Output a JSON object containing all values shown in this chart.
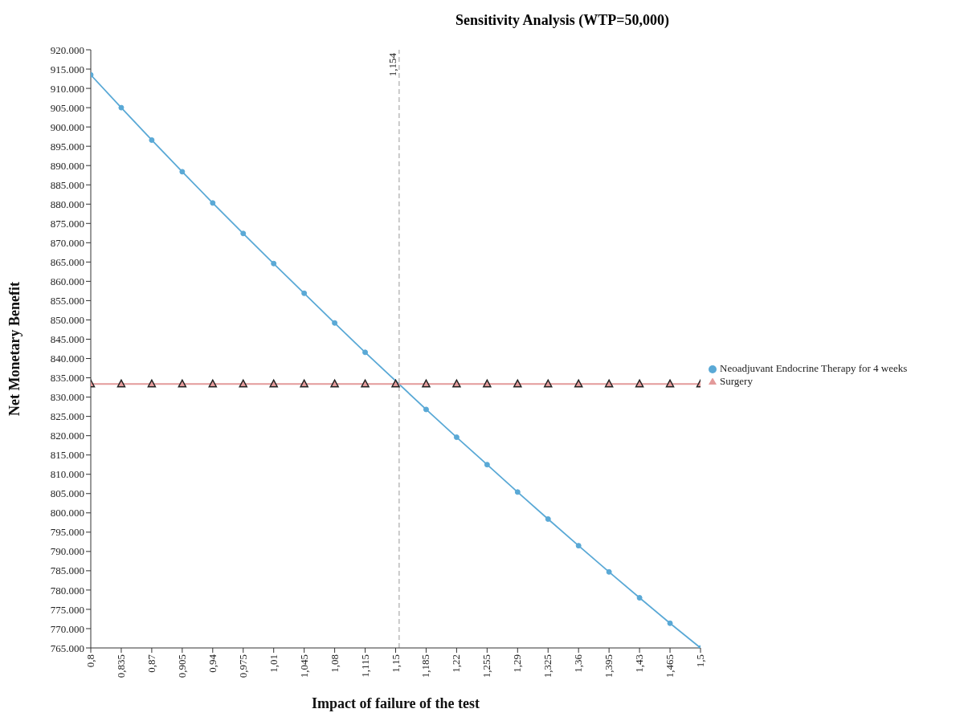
{
  "chart_data": {
    "type": "line",
    "title": "Sensitivity Analysis (WTP=50,000)",
    "xlabel": "Impact of failure of the test",
    "ylabel": "Net Monetary Benefit",
    "x": [
      0.8,
      0.835,
      0.87,
      0.905,
      0.94,
      0.975,
      1.01,
      1.045,
      1.08,
      1.115,
      1.15,
      1.185,
      1.22,
      1.255,
      1.29,
      1.325,
      1.36,
      1.395,
      1.43,
      1.465,
      1.5
    ],
    "series": [
      {
        "name": "Neoadjuvant Endocrine Therapy for 4 weeks",
        "color": "#5aa9d6",
        "marker": "circle",
        "values": [
          913500,
          905000,
          896600,
          888400,
          880300,
          872400,
          864600,
          856900,
          849200,
          841600,
          null,
          826800,
          819600,
          812500,
          805400,
          798400,
          791500,
          784700,
          778000,
          771400,
          765000
        ]
      },
      {
        "name": "Surgery",
        "color": "#e39a9a",
        "marker": "triangle",
        "values": [
          833400,
          833400,
          833400,
          833400,
          833400,
          833400,
          833400,
          833400,
          833400,
          833400,
          833400,
          833400,
          833400,
          833400,
          833400,
          833400,
          833400,
          833400,
          833400,
          833400,
          833400
        ]
      }
    ],
    "xlim": [
      0.8,
      1.5
    ],
    "xticks": [
      {
        "value": 0.8,
        "label": "0,8"
      },
      {
        "value": 0.835,
        "label": "0,835"
      },
      {
        "value": 0.87,
        "label": "0,87"
      },
      {
        "value": 0.905,
        "label": "0,905"
      },
      {
        "value": 0.94,
        "label": "0,94"
      },
      {
        "value": 0.975,
        "label": "0,975"
      },
      {
        "value": 1.01,
        "label": "1,01"
      },
      {
        "value": 1.045,
        "label": "1,045"
      },
      {
        "value": 1.08,
        "label": "1,08"
      },
      {
        "value": 1.115,
        "label": "1,115"
      },
      {
        "value": 1.15,
        "label": "1,15"
      },
      {
        "value": 1.185,
        "label": "1,185"
      },
      {
        "value": 1.22,
        "label": "1,22"
      },
      {
        "value": 1.255,
        "label": "1,255"
      },
      {
        "value": 1.29,
        "label": "1,29"
      },
      {
        "value": 1.325,
        "label": "1,325"
      },
      {
        "value": 1.36,
        "label": "1,36"
      },
      {
        "value": 1.395,
        "label": "1,395"
      },
      {
        "value": 1.43,
        "label": "1,43"
      },
      {
        "value": 1.465,
        "label": "1,465"
      },
      {
        "value": 1.5,
        "label": "1,5"
      }
    ],
    "ylim": [
      765000,
      920000
    ],
    "yticks": [
      {
        "value": 765000,
        "label": "765.000"
      },
      {
        "value": 770000,
        "label": "770.000"
      },
      {
        "value": 775000,
        "label": "775.000"
      },
      {
        "value": 780000,
        "label": "780.000"
      },
      {
        "value": 785000,
        "label": "785.000"
      },
      {
        "value": 790000,
        "label": "790.000"
      },
      {
        "value": 795000,
        "label": "795.000"
      },
      {
        "value": 800000,
        "label": "800.000"
      },
      {
        "value": 805000,
        "label": "805.000"
      },
      {
        "value": 810000,
        "label": "810.000"
      },
      {
        "value": 815000,
        "label": "815.000"
      },
      {
        "value": 820000,
        "label": "820.000"
      },
      {
        "value": 825000,
        "label": "825.000"
      },
      {
        "value": 830000,
        "label": "830.000"
      },
      {
        "value": 835000,
        "label": "835.000"
      },
      {
        "value": 840000,
        "label": "840.000"
      },
      {
        "value": 845000,
        "label": "845.000"
      },
      {
        "value": 850000,
        "label": "850.000"
      },
      {
        "value": 855000,
        "label": "855.000"
      },
      {
        "value": 860000,
        "label": "860.000"
      },
      {
        "value": 865000,
        "label": "865.000"
      },
      {
        "value": 870000,
        "label": "870.000"
      },
      {
        "value": 875000,
        "label": "875.000"
      },
      {
        "value": 880000,
        "label": "880.000"
      },
      {
        "value": 885000,
        "label": "885.000"
      },
      {
        "value": 890000,
        "label": "890.000"
      },
      {
        "value": 895000,
        "label": "895.000"
      },
      {
        "value": 900000,
        "label": "900.000"
      },
      {
        "value": 905000,
        "label": "905.000"
      },
      {
        "value": 910000,
        "label": "910.000"
      },
      {
        "value": 915000,
        "label": "915.000"
      },
      {
        "value": 920000,
        "label": "920.000"
      }
    ],
    "ref_lines": [
      {
        "axis": "x",
        "value": 1.154,
        "label": "1,154",
        "color": "#bbbbbb",
        "line_style": "dashed"
      }
    ],
    "grid": false,
    "legend": "right",
    "line_style": "solid"
  }
}
